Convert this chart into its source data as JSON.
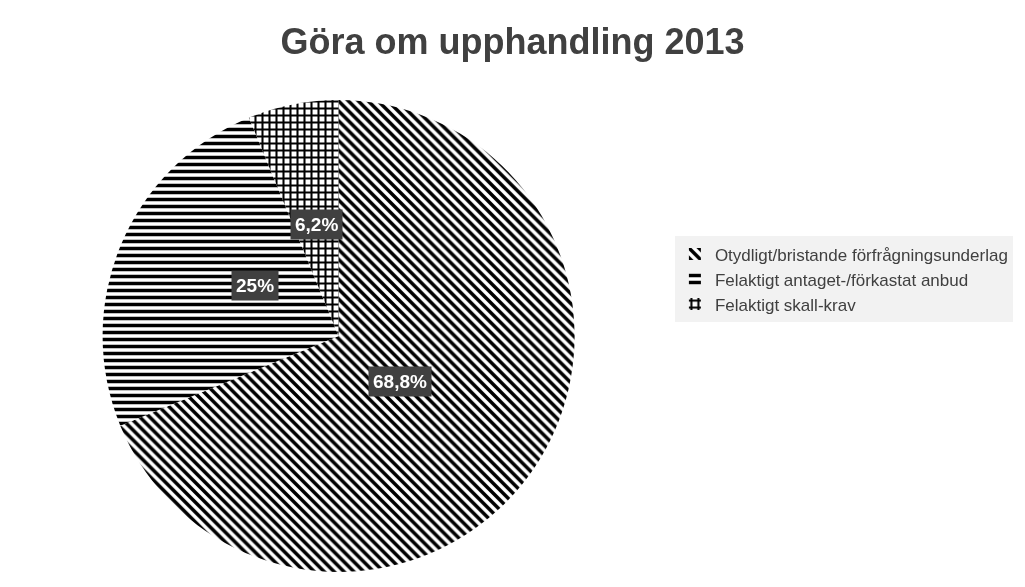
{
  "chart_data": {
    "type": "pie",
    "title": "Göra om upphandling 2013",
    "categories": [
      "Otydligt/bristande förfrågningsunderlag",
      "Felaktigt antaget-/förkastat anbud",
      "Felaktigt skall-krav"
    ],
    "values": [
      68.8,
      25,
      6.2
    ],
    "value_labels": [
      "68,8%",
      "25%",
      "6,2%"
    ],
    "colors": [
      "#000000",
      "#000000",
      "#000000"
    ],
    "legend": "right"
  }
}
